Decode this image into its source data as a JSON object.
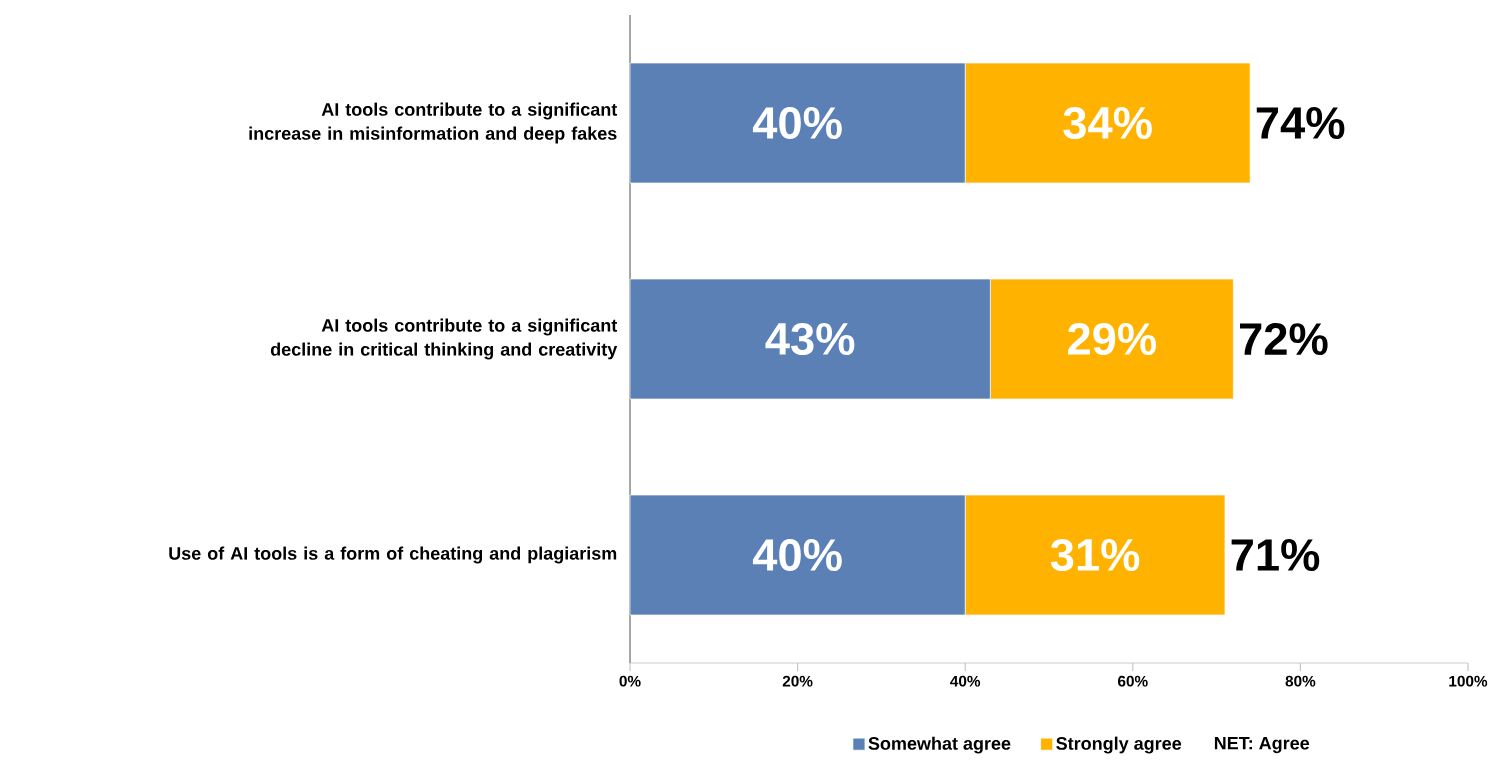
{
  "chart_data": {
    "type": "bar",
    "orientation": "horizontal",
    "stacked": true,
    "categories": [
      "AI tools contribute to a significant increase in misinformation and deep fakes",
      "AI tools contribute to a significant decline in critical thinking and creativity",
      "Use of AI tools is a form of cheating and plagiarism"
    ],
    "series": [
      {
        "name": "Somewhat agree",
        "color": "#5a80b6",
        "values": [
          40,
          43,
          40
        ],
        "value_labels": [
          "40%",
          "43%",
          "40%"
        ]
      },
      {
        "name": "Strongly agree",
        "color": "#ffb300",
        "values": [
          34,
          29,
          31
        ],
        "value_labels": [
          "34%",
          "29%",
          "31%"
        ]
      }
    ],
    "totals": [
      "74%",
      "72%",
      "71%"
    ],
    "annotations": [
      "NET: Agree"
    ],
    "xlim": [
      0,
      100
    ],
    "xticks": [
      {
        "value": 0,
        "label": "0%"
      },
      {
        "value": 20,
        "label": "20%"
      },
      {
        "value": 40,
        "label": "40%"
      },
      {
        "value": 60,
        "label": "60%"
      },
      {
        "value": 80,
        "label": "80%"
      },
      {
        "value": 100,
        "label": "100%"
      }
    ],
    "legend": "bottom"
  }
}
